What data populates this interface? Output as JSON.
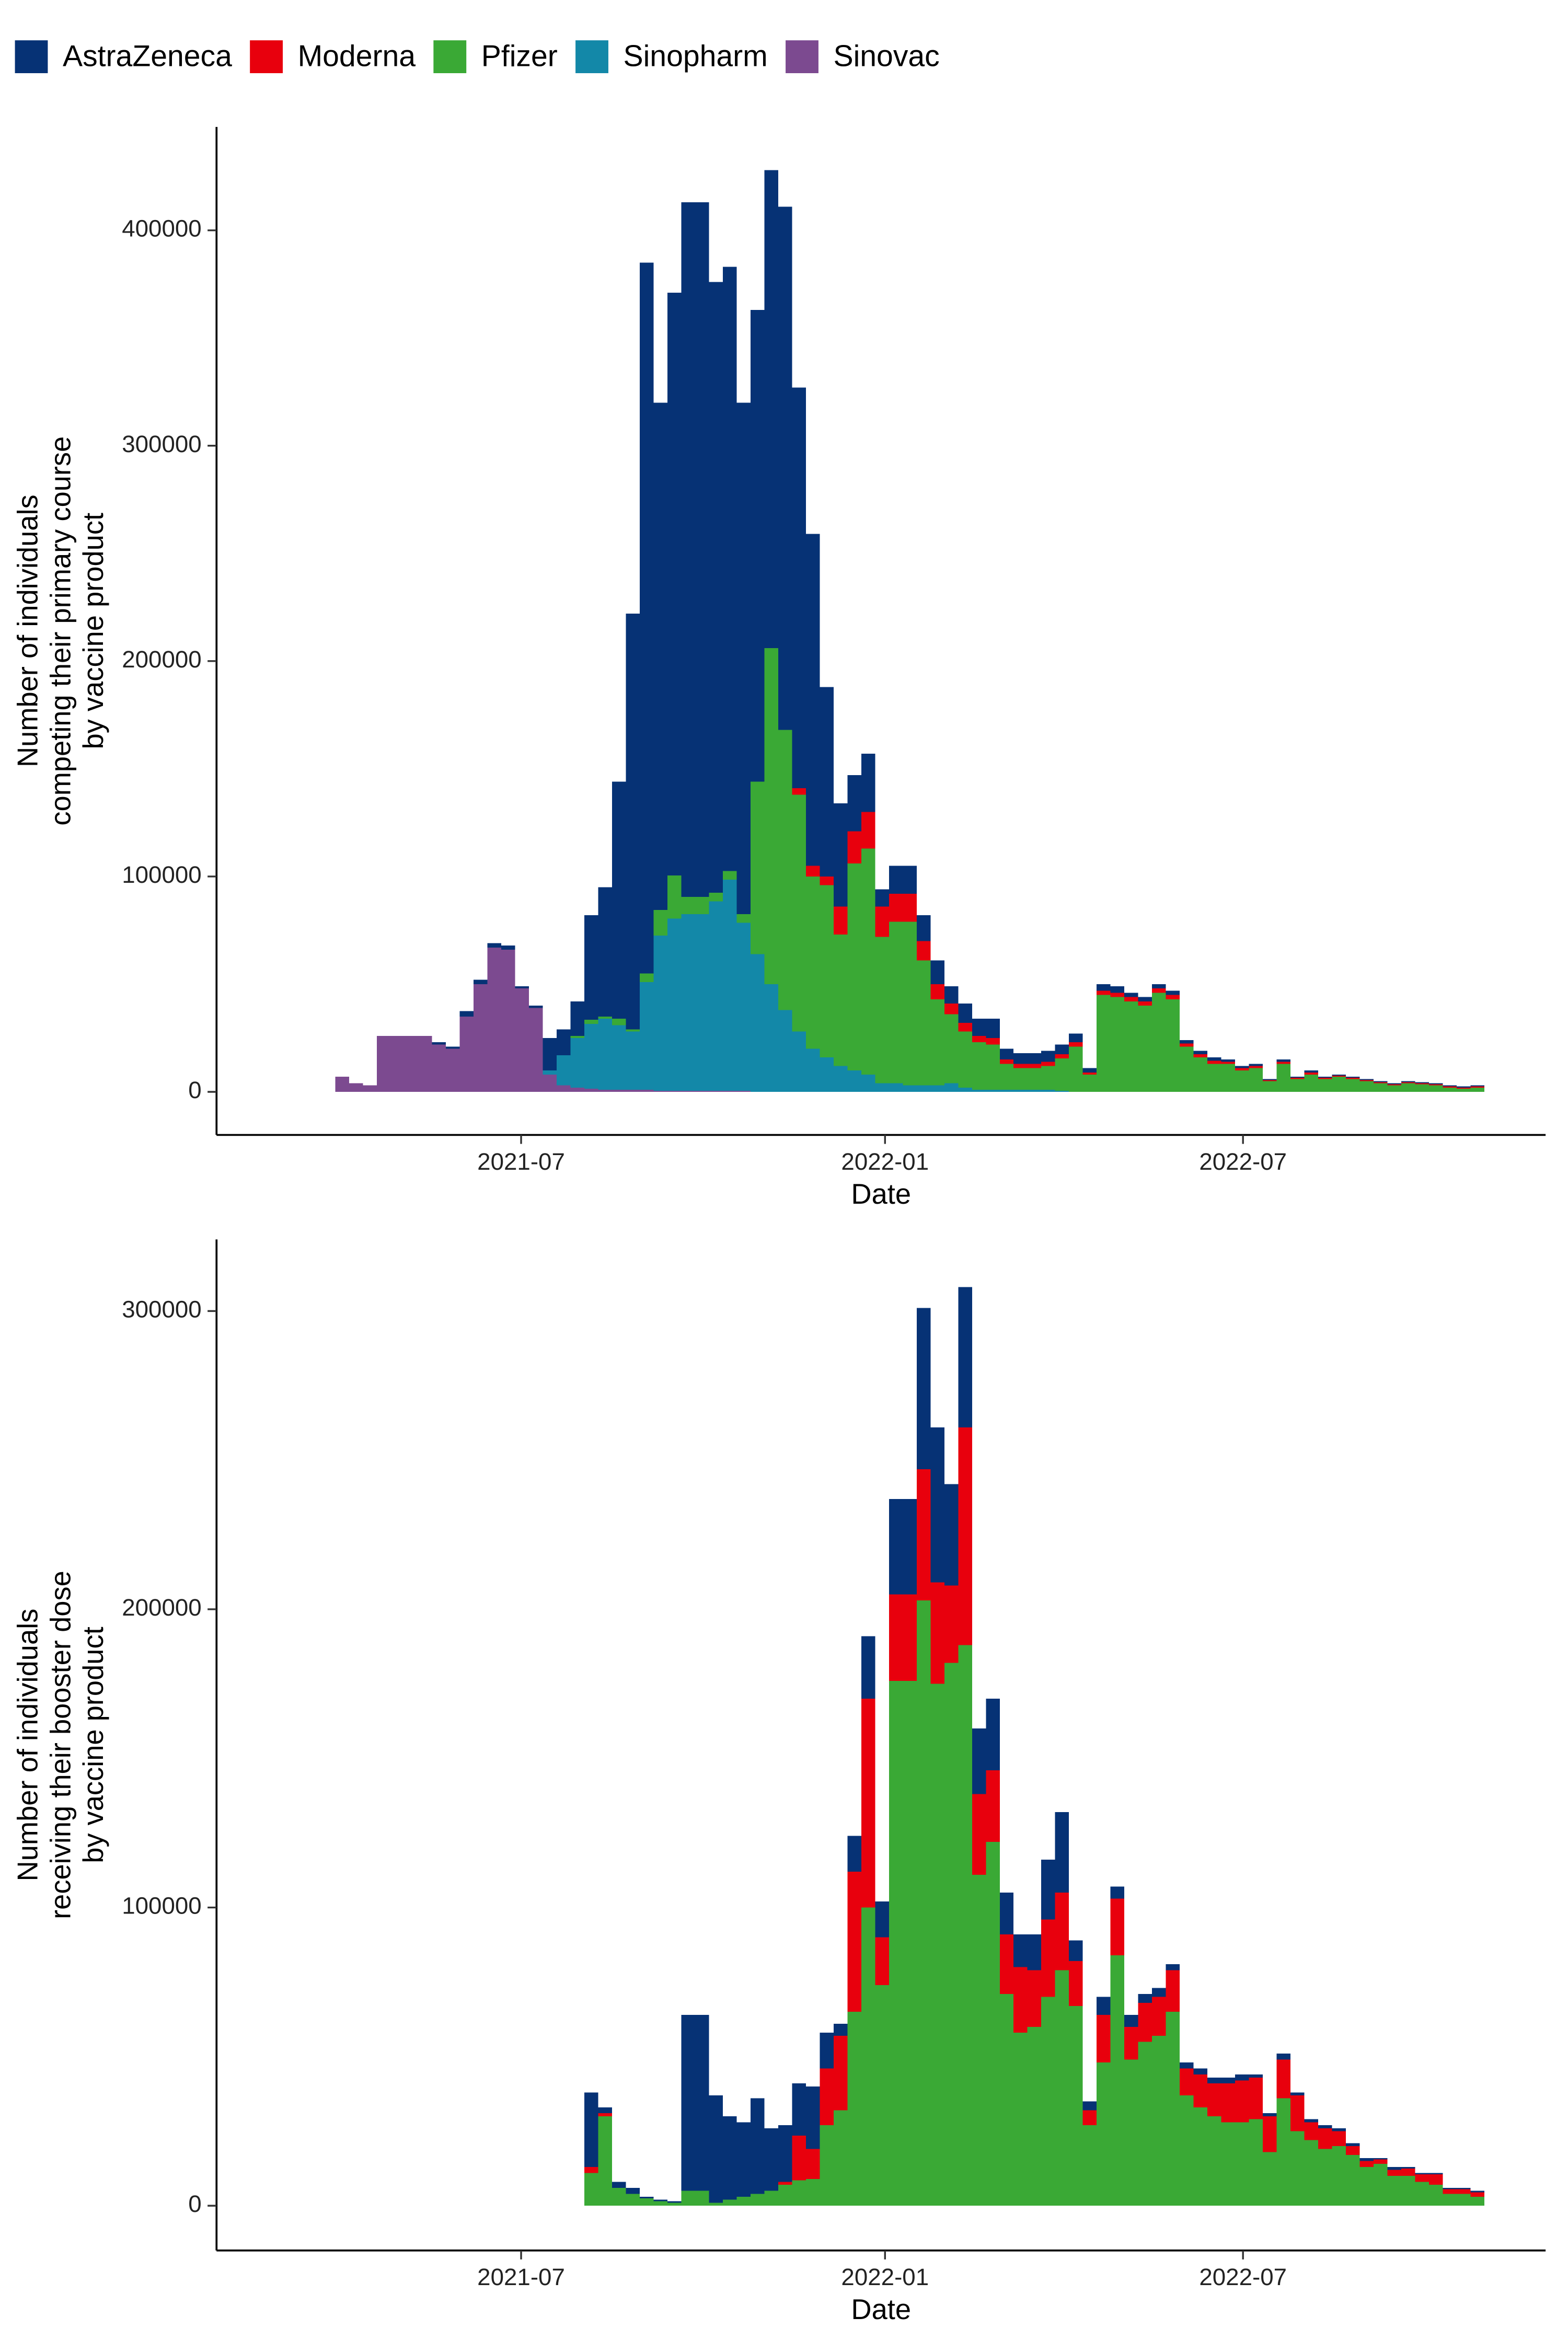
{
  "chart_data": [
    {
      "type": "bar",
      "stacked": true,
      "xlabel": "Date",
      "ylabel": [
        "Number of individuals",
        "competing their primary course",
        "by vaccine product"
      ],
      "xlim": [
        "2021-01-28",
        "2022-12-01"
      ],
      "xticks": [
        {
          "value": "2021-07-01",
          "label": "2021-07"
        },
        {
          "value": "2022-01-01",
          "label": "2022-01"
        },
        {
          "value": "2022-07-01",
          "label": "2022-07"
        }
      ],
      "ylim": [
        -20000,
        448000
      ],
      "yticks": [
        0,
        100000,
        200000,
        300000,
        400000
      ],
      "grid": false,
      "x": [
        "2021-03-01",
        "2021-03-08",
        "2021-03-15",
        "2021-03-22",
        "2021-03-29",
        "2021-04-05",
        "2021-04-12",
        "2021-04-19",
        "2021-04-26",
        "2021-05-03",
        "2021-05-10",
        "2021-05-17",
        "2021-05-24",
        "2021-05-31",
        "2021-06-07",
        "2021-06-14",
        "2021-06-21",
        "2021-06-28",
        "2021-07-05",
        "2021-07-12",
        "2021-07-19",
        "2021-07-26",
        "2021-08-02",
        "2021-08-09",
        "2021-08-16",
        "2021-08-23",
        "2021-08-30",
        "2021-09-06",
        "2021-09-13",
        "2021-09-20",
        "2021-09-27",
        "2021-10-04",
        "2021-10-11",
        "2021-10-18",
        "2021-10-25",
        "2021-11-01",
        "2021-11-08",
        "2021-11-15",
        "2021-11-22",
        "2021-11-29",
        "2021-12-06",
        "2021-12-13",
        "2021-12-20",
        "2021-12-27",
        "2022-01-03",
        "2022-01-10",
        "2022-01-17",
        "2022-01-24",
        "2022-01-31",
        "2022-02-07",
        "2022-02-14",
        "2022-02-21",
        "2022-02-28",
        "2022-03-07",
        "2022-03-14",
        "2022-03-21",
        "2022-03-28",
        "2022-04-04",
        "2022-04-11",
        "2022-04-18",
        "2022-04-25",
        "2022-05-02",
        "2022-05-09",
        "2022-05-16",
        "2022-05-23",
        "2022-05-30",
        "2022-06-06",
        "2022-06-13",
        "2022-06-20",
        "2022-06-27",
        "2022-07-04",
        "2022-07-11",
        "2022-07-18",
        "2022-07-25",
        "2022-08-01",
        "2022-08-08",
        "2022-08-15",
        "2022-08-22",
        "2022-08-29",
        "2022-09-05",
        "2022-09-12",
        "2022-09-19",
        "2022-09-26",
        "2022-10-03",
        "2022-10-10",
        "2022-10-17",
        "2022-10-24"
      ],
      "series": [
        {
          "name": "AstraZeneca",
          "color": "#063275",
          "values": [
            0,
            0,
            0,
            0,
            0,
            0,
            0,
            0,
            0,
            0,
            0,
            1000,
            1000,
            2500,
            2000,
            2000,
            2000,
            1000,
            1000,
            15000,
            12000,
            16000,
            48500,
            60000,
            110000,
            193000,
            330000,
            235500,
            270500,
            322500,
            322500,
            283500,
            280500,
            237500,
            219000,
            222000,
            243000,
            186000,
            154000,
            88000,
            48000,
            26000,
            27000,
            8000,
            13000,
            13000,
            12000,
            11000,
            8000,
            9000,
            8000,
            9000,
            5000,
            5000,
            5000,
            5000,
            4500,
            4000,
            2000,
            3000,
            3000,
            2000,
            2000,
            2000,
            2000,
            1500,
            1500,
            1500,
            1000,
            1000,
            1000,
            500,
            1000,
            500,
            1000,
            500,
            500,
            500,
            500,
            500,
            500,
            500,
            500,
            500,
            500,
            500,
            500
          ]
        },
        {
          "name": "Moderna",
          "color": "#e8000d",
          "values": [
            0,
            0,
            0,
            0,
            0,
            0,
            0,
            0,
            0,
            0,
            0,
            0,
            0,
            0,
            0,
            0,
            0,
            0,
            0,
            0,
            0,
            0,
            0,
            0,
            0,
            0,
            0,
            0,
            0,
            0,
            0,
            0,
            0,
            0,
            0,
            0,
            0,
            3000,
            5000,
            4000,
            13000,
            15000,
            17000,
            14000,
            13000,
            13000,
            9000,
            7000,
            5000,
            4000,
            3000,
            3000,
            2000,
            2000,
            2000,
            2000,
            2000,
            2000,
            1000,
            2000,
            2000,
            2000,
            2000,
            2000,
            2000,
            1500,
            1500,
            1500,
            1000,
            1000,
            1000,
            500,
            1000,
            500,
            1000,
            500,
            500,
            500,
            500,
            500,
            500,
            500,
            500,
            500,
            500,
            500,
            500
          ]
        },
        {
          "name": "Pfizer",
          "color": "#3aa935",
          "values": [
            0,
            0,
            0,
            0,
            0,
            0,
            0,
            0,
            0,
            0,
            0,
            0,
            0,
            0,
            0,
            0,
            0,
            0,
            0,
            0,
            0,
            1000,
            2000,
            1000,
            3000,
            1000,
            4000,
            12000,
            20000,
            8000,
            8000,
            4000,
            4000,
            4000,
            80000,
            156000,
            130000,
            110000,
            80000,
            80000,
            61000,
            96000,
            105000,
            68000,
            75000,
            76000,
            58000,
            40000,
            32000,
            26000,
            22000,
            21000,
            12000,
            10000,
            10000,
            11000,
            15000,
            21000,
            8000,
            45000,
            44000,
            42000,
            40000,
            46000,
            43000,
            21000,
            16000,
            13000,
            13000,
            10000,
            11000,
            5000,
            13000,
            6000,
            8000,
            6000,
            7000,
            6000,
            5000,
            4000,
            3000,
            4000,
            3500,
            3000,
            2000,
            1500,
            2000
          ]
        },
        {
          "name": "Sinopharm",
          "color": "#1388a8",
          "values": [
            0,
            0,
            0,
            0,
            0,
            0,
            0,
            0,
            0,
            0,
            0,
            0,
            0,
            0,
            0,
            0,
            0,
            0,
            0,
            2000,
            14000,
            23000,
            30000,
            33000,
            30000,
            27000,
            50000,
            72000,
            80000,
            82000,
            82000,
            88000,
            98000,
            78000,
            64000,
            50000,
            38000,
            28000,
            20000,
            16000,
            12000,
            10000,
            8000,
            4000,
            4000,
            3000,
            3000,
            3000,
            4000,
            2000,
            1000,
            1000,
            1000,
            1000,
            1000,
            1000,
            500,
            0,
            0,
            0,
            0,
            0,
            0,
            0,
            0,
            0,
            0,
            0,
            0,
            0,
            0,
            0,
            0,
            0,
            0,
            0,
            0,
            0,
            0,
            0,
            0,
            0,
            0,
            0,
            0,
            0,
            0
          ]
        },
        {
          "name": "Sinovac",
          "color": "#7c4a90",
          "values": [
            0,
            0,
            0,
            0,
            7000,
            4000,
            3000,
            26000,
            26000,
            26000,
            26000,
            22000,
            20000,
            35000,
            50000,
            67000,
            66000,
            48000,
            39000,
            8000,
            3000,
            2000,
            1500,
            1000,
            1000,
            1000,
            1000,
            500,
            500,
            500,
            500,
            500,
            500,
            500,
            0,
            0,
            0,
            0,
            0,
            0,
            0,
            0,
            0,
            0,
            0,
            0,
            0,
            0,
            0,
            0,
            0,
            0,
            0,
            0,
            0,
            0,
            0,
            0,
            0,
            0,
            0,
            0,
            0,
            0,
            0,
            0,
            0,
            0,
            0,
            0,
            0,
            0,
            0,
            0,
            0,
            0,
            0,
            0,
            0,
            0,
            0,
            0,
            0,
            0,
            0,
            0,
            0
          ]
        }
      ]
    },
    {
      "type": "bar",
      "stacked": true,
      "xlabel": "Date",
      "ylabel": [
        "Number of individuals",
        "receiving their booster dose",
        "by vaccine product"
      ],
      "xlim": [
        "2021-01-28",
        "2022-12-01"
      ],
      "xticks": [
        {
          "value": "2021-07-01",
          "label": "2021-07"
        },
        {
          "value": "2022-01-01",
          "label": "2022-01"
        },
        {
          "value": "2022-07-01",
          "label": "2022-07"
        }
      ],
      "ylim": [
        -15000,
        324000
      ],
      "yticks": [
        0,
        100000,
        200000,
        300000
      ],
      "grid": false,
      "x": [
        "2021-03-01",
        "2021-03-08",
        "2021-03-15",
        "2021-03-22",
        "2021-03-29",
        "2021-04-05",
        "2021-04-12",
        "2021-04-19",
        "2021-04-26",
        "2021-05-03",
        "2021-05-10",
        "2021-05-17",
        "2021-05-24",
        "2021-05-31",
        "2021-06-07",
        "2021-06-14",
        "2021-06-21",
        "2021-06-28",
        "2021-07-05",
        "2021-07-12",
        "2021-07-19",
        "2021-07-26",
        "2021-08-02",
        "2021-08-09",
        "2021-08-16",
        "2021-08-23",
        "2021-08-30",
        "2021-09-06",
        "2021-09-13",
        "2021-09-20",
        "2021-09-27",
        "2021-10-04",
        "2021-10-11",
        "2021-10-18",
        "2021-10-25",
        "2021-11-01",
        "2021-11-08",
        "2021-11-15",
        "2021-11-22",
        "2021-11-29",
        "2021-12-06",
        "2021-12-13",
        "2021-12-20",
        "2021-12-27",
        "2022-01-03",
        "2022-01-10",
        "2022-01-17",
        "2022-01-24",
        "2022-01-31",
        "2022-02-07",
        "2022-02-14",
        "2022-02-21",
        "2022-02-28",
        "2022-03-07",
        "2022-03-14",
        "2022-03-21",
        "2022-03-28",
        "2022-04-04",
        "2022-04-11",
        "2022-04-18",
        "2022-04-25",
        "2022-05-02",
        "2022-05-09",
        "2022-05-16",
        "2022-05-23",
        "2022-05-30",
        "2022-06-06",
        "2022-06-13",
        "2022-06-20",
        "2022-06-27",
        "2022-07-04",
        "2022-07-11",
        "2022-07-18",
        "2022-07-25",
        "2022-08-01",
        "2022-08-08",
        "2022-08-15",
        "2022-08-22",
        "2022-08-29",
        "2022-09-05",
        "2022-09-12",
        "2022-09-19",
        "2022-09-26",
        "2022-10-03",
        "2022-10-10",
        "2022-10-17",
        "2022-10-24"
      ],
      "series": [
        {
          "name": "AstraZeneca",
          "color": "#063275",
          "values": [
            0,
            0,
            0,
            0,
            0,
            0,
            0,
            0,
            0,
            0,
            0,
            0,
            0,
            0,
            0,
            0,
            0,
            0,
            0,
            0,
            0,
            0,
            25000,
            2000,
            2000,
            2000,
            500,
            500,
            500,
            59000,
            59000,
            36000,
            28000,
            25000,
            32000,
            21000,
            19000,
            17500,
            21000,
            12000,
            4000,
            12000,
            21000,
            12000,
            32000,
            32000,
            54000,
            52000,
            34000,
            47000,
            22000,
            24000,
            14000,
            11000,
            12000,
            20000,
            27000,
            7000,
            3000,
            6000,
            4000,
            4000,
            3000,
            3000,
            2000,
            2000,
            2000,
            2000,
            2000,
            2000,
            1000,
            1000,
            2000,
            1000,
            1000,
            1000,
            1000,
            1000,
            1000,
            500,
            1000,
            500,
            500,
            500,
            500,
            500,
            500
          ]
        },
        {
          "name": "Moderna",
          "color": "#e8000d",
          "values": [
            0,
            0,
            0,
            0,
            0,
            0,
            0,
            0,
            0,
            0,
            0,
            0,
            0,
            0,
            0,
            0,
            0,
            0,
            0,
            0,
            0,
            0,
            2000,
            1000,
            0,
            0,
            0,
            0,
            0,
            0,
            0,
            0,
            0,
            0,
            0,
            0,
            1000,
            15000,
            10000,
            19000,
            25000,
            47000,
            70000,
            16000,
            29000,
            29000,
            44000,
            34000,
            26000,
            73000,
            27000,
            24000,
            20000,
            22000,
            19000,
            26000,
            26000,
            15000,
            5000,
            16000,
            19000,
            11000,
            13000,
            13000,
            14000,
            9000,
            11000,
            11000,
            13000,
            14000,
            14000,
            12000,
            13000,
            12000,
            6000,
            7000,
            5000,
            3000,
            2000,
            1500,
            2000,
            2500,
            2500,
            3500,
            1500,
            1500,
            1500
          ]
        },
        {
          "name": "Pfizer",
          "color": "#3aa935",
          "values": [
            0,
            0,
            0,
            0,
            0,
            0,
            0,
            0,
            0,
            0,
            0,
            0,
            0,
            0,
            0,
            0,
            0,
            0,
            0,
            0,
            0,
            0,
            11000,
            30000,
            6000,
            4000,
            2500,
            1500,
            1000,
            5000,
            5000,
            1000,
            2000,
            3000,
            4000,
            5000,
            7000,
            8500,
            9000,
            27000,
            32000,
            65000,
            100000,
            74000,
            176000,
            176000,
            203000,
            175000,
            182000,
            188000,
            111000,
            122000,
            71000,
            58000,
            60000,
            70000,
            79000,
            67000,
            27000,
            48000,
            84000,
            49000,
            55000,
            57000,
            65000,
            37000,
            33000,
            30000,
            28000,
            28000,
            29000,
            18000,
            36000,
            25000,
            22000,
            19000,
            20000,
            17000,
            13000,
            14000,
            10000,
            10000,
            8000,
            7000,
            4000,
            4000,
            3000
          ]
        }
      ]
    }
  ]
}
